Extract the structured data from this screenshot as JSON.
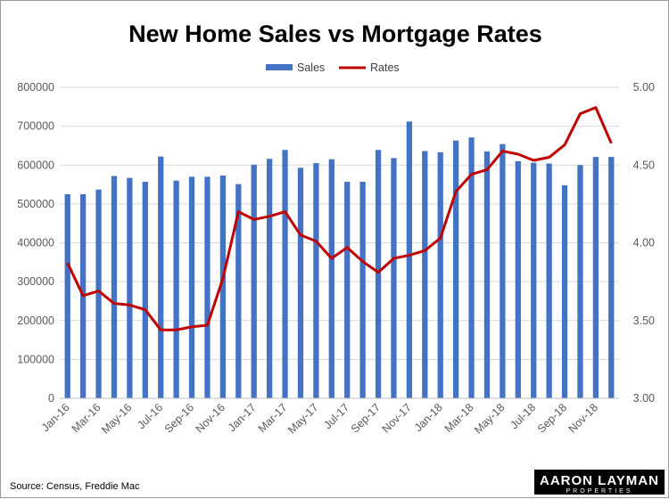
{
  "chart_data": {
    "type": "bar",
    "title": "New Home Sales vs Mortgage Rates",
    "legend": {
      "position": "top",
      "items": [
        "Sales",
        "Rates"
      ]
    },
    "colors": {
      "Sales": "#4472C4",
      "Rates": "#C00000",
      "grid": "#D9D9D9"
    },
    "grid": true,
    "categories": [
      "Jan-16",
      "Feb-16",
      "Mar-16",
      "Apr-16",
      "May-16",
      "Jun-16",
      "Jul-16",
      "Aug-16",
      "Sep-16",
      "Oct-16",
      "Nov-16",
      "Dec-16",
      "Jan-17",
      "Feb-17",
      "Mar-17",
      "Apr-17",
      "May-17",
      "Jun-17",
      "Jul-17",
      "Aug-17",
      "Sep-17",
      "Oct-17",
      "Nov-17",
      "Dec-17",
      "Jan-18",
      "Feb-18",
      "Mar-18",
      "Apr-18",
      "May-18",
      "Jun-18",
      "Jul-18",
      "Aug-18",
      "Sep-18",
      "Oct-18",
      "Nov-18",
      "Dec-18"
    ],
    "x_tick_labels": [
      "Jan-16",
      "Mar-16",
      "May-16",
      "Jul-16",
      "Sep-16",
      "Nov-16",
      "Jan-17",
      "Mar-17",
      "May-17",
      "Jul-17",
      "Sep-17",
      "Nov-17",
      "Jan-18",
      "Mar-18",
      "May-18",
      "Jul-18",
      "Sep-18",
      "Nov-18"
    ],
    "series": [
      {
        "name": "Sales",
        "type": "bar",
        "axis": "left",
        "values": [
          525000,
          525000,
          537000,
          572000,
          567000,
          557000,
          622000,
          560000,
          570000,
          570000,
          573000,
          551000,
          601000,
          616000,
          639000,
          593000,
          605000,
          615000,
          557000,
          557000,
          639000,
          618000,
          712000,
          636000,
          633000,
          663000,
          671000,
          635000,
          654000,
          610000,
          606000,
          604000,
          548000,
          600000,
          621000,
          621000
        ]
      },
      {
        "name": "Rates",
        "type": "line",
        "axis": "right",
        "values": [
          3.87,
          3.66,
          3.69,
          3.61,
          3.6,
          3.57,
          3.44,
          3.44,
          3.46,
          3.47,
          3.77,
          4.2,
          4.15,
          4.17,
          4.2,
          4.05,
          4.01,
          3.9,
          3.97,
          3.88,
          3.81,
          3.9,
          3.92,
          3.95,
          4.03,
          4.33,
          4.44,
          4.47,
          4.59,
          4.57,
          4.53,
          4.55,
          4.63,
          4.83,
          4.87,
          4.64
        ]
      }
    ],
    "y_left": {
      "min": 0,
      "max": 800000,
      "ticks": [
        "0",
        "100000",
        "200000",
        "300000",
        "400000",
        "500000",
        "600000",
        "700000",
        "800000"
      ]
    },
    "y_right": {
      "min": 3.0,
      "max": 5.0,
      "ticks": [
        "3.00",
        "3.50",
        "4.00",
        "4.50",
        "5.00"
      ]
    }
  },
  "source": "Source: Census, Freddie Mac",
  "logo": {
    "main": "AARON LAYMAN",
    "sub": "PROPERTIES"
  }
}
